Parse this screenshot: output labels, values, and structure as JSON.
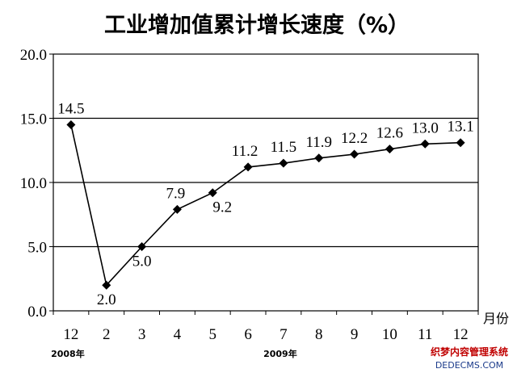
{
  "chart_data": {
    "type": "line",
    "title": "工业增加值累计增长速度（%）",
    "x_unit_label": "月份",
    "year_labels": [
      {
        "text": "2008年",
        "at_index": 0
      },
      {
        "text": "2009年",
        "at_index": 6
      }
    ],
    "categories": [
      "12",
      "2",
      "3",
      "4",
      "5",
      "6",
      "7",
      "8",
      "9",
      "10",
      "11",
      "12"
    ],
    "values": [
      14.5,
      2.0,
      5.0,
      7.9,
      9.2,
      11.2,
      11.5,
      11.9,
      12.2,
      12.6,
      13.0,
      13.1
    ],
    "data_labels": [
      "14.5",
      "2.0",
      "5.0",
      "7.9",
      "9.2",
      "11.2",
      "11.5",
      "11.9",
      "12.2",
      "12.6",
      "13.0",
      "13.1"
    ],
    "ylim": [
      0,
      20
    ],
    "yticks": [
      "0.0",
      "5.0",
      "10.0",
      "15.0",
      "20.0"
    ],
    "grid": "horizontal",
    "legend": "none",
    "line_color": "#000000",
    "marker": "diamond"
  },
  "watermark": {
    "line1": "织梦内容管理系统",
    "line2": "DEDECMS.COM"
  }
}
